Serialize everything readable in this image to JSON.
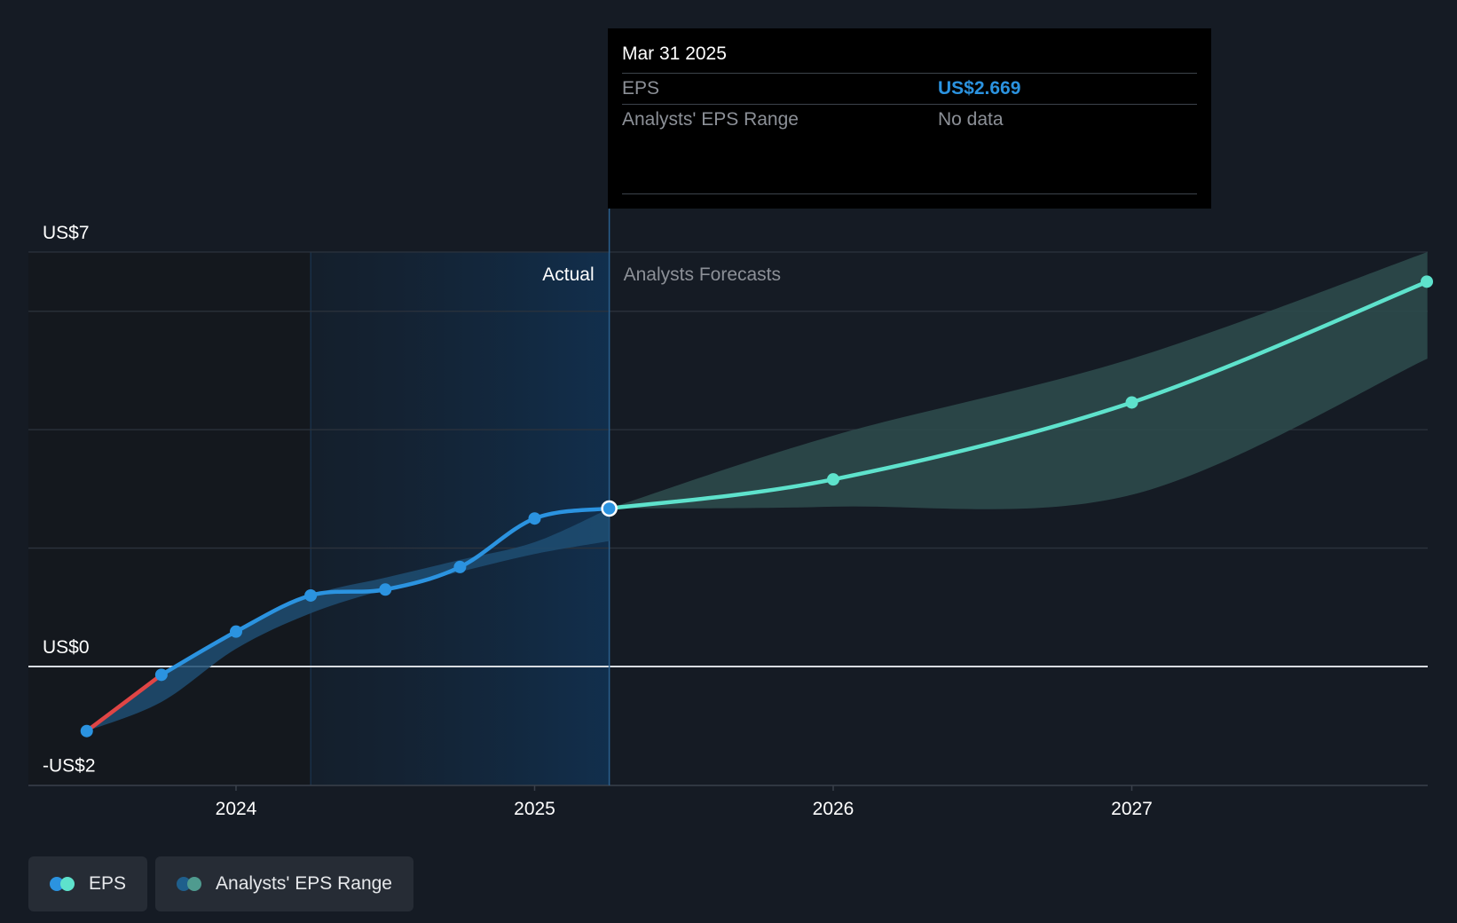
{
  "tooltip": {
    "date": "Mar 31 2025",
    "rows": [
      {
        "label": "EPS",
        "value": "US$2.669"
      },
      {
        "label": "Analysts' EPS Range",
        "value": "No data"
      }
    ]
  },
  "legend": {
    "items": [
      {
        "label": "EPS",
        "colors": [
          "#2b93e0",
          "#5ee2cc"
        ]
      },
      {
        "label": "Analysts' EPS Range",
        "colors": [
          "#1f5f8c",
          "#4f9b8f"
        ]
      }
    ]
  },
  "colors": {
    "actual": "#2b93e0",
    "negative": "#e04545",
    "forecast": "#5ee2cc",
    "actual_band": "#1f4d72",
    "forecast_band": "#2c4a4b"
  },
  "chart_data": {
    "type": "line",
    "ylim": [
      -2,
      7
    ],
    "ytick_labels": [
      {
        "value": 7,
        "label": "US$7"
      },
      {
        "value": 0,
        "label": "US$0"
      },
      {
        "value": -2,
        "label": "-US$2"
      }
    ],
    "xtick_labels": [
      {
        "value": 2024.0,
        "label": "2024"
      },
      {
        "value": 2025.0,
        "label": "2025"
      },
      {
        "value": 2026.0,
        "label": "2026"
      },
      {
        "value": 2027.0,
        "label": "2027"
      }
    ],
    "gridlines": [
      7,
      6,
      4,
      2,
      0
    ],
    "region_labels": {
      "actual": "Actual",
      "forecast": "Analysts Forecasts"
    },
    "past_window_start": 2024.25,
    "current_date": 2025.25,
    "series": [
      {
        "name": "EPS",
        "points": [
          {
            "x": 2023.5,
            "y": -1.09
          },
          {
            "x": 2023.75,
            "y": -0.14
          },
          {
            "x": 2024.0,
            "y": 0.59
          },
          {
            "x": 2024.25,
            "y": 1.2
          },
          {
            "x": 2024.5,
            "y": 1.3
          },
          {
            "x": 2024.75,
            "y": 1.68
          },
          {
            "x": 2025.0,
            "y": 2.5
          },
          {
            "x": 2025.25,
            "y": 2.669
          }
        ]
      },
      {
        "name": "Analysts Forecasts",
        "points": [
          {
            "x": 2025.25,
            "y": 2.669
          },
          {
            "x": 2026.0,
            "y": 3.16
          },
          {
            "x": 2027.0,
            "y": 4.46
          },
          {
            "x": 2027.99,
            "y": 6.5
          }
        ]
      }
    ],
    "actual_range": {
      "x": [
        2023.5,
        2023.75,
        2024.0,
        2024.25,
        2024.5,
        2024.75,
        2025.0,
        2025.25
      ],
      "low": [
        -1.09,
        -0.6,
        0.3,
        0.9,
        1.3,
        1.6,
        1.9,
        2.12
      ],
      "high": [
        -1.09,
        -0.14,
        0.59,
        1.2,
        1.5,
        1.8,
        2.1,
        2.669
      ]
    },
    "forecast_range": {
      "x": [
        2025.25,
        2026.0,
        2027.0,
        2027.99
      ],
      "low": [
        2.669,
        2.7,
        2.9,
        5.2
      ],
      "high": [
        2.669,
        3.9,
        5.2,
        7.0
      ]
    }
  }
}
